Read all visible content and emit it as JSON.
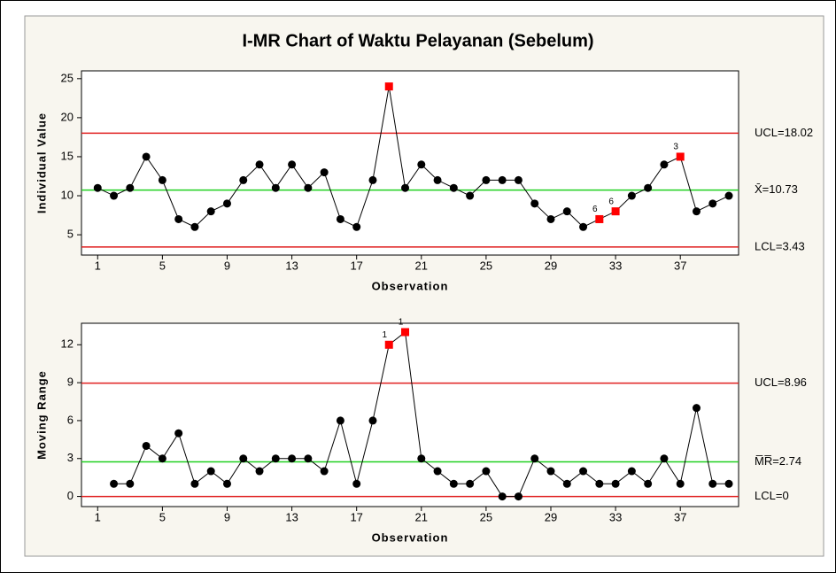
{
  "title": "I-MR Chart of Waktu Pelayanan (Sebelum)",
  "chart_data": [
    {
      "type": "line",
      "y_label": "Individual Value",
      "x_label": "Observation",
      "x": [
        1,
        2,
        3,
        4,
        5,
        6,
        7,
        8,
        9,
        10,
        11,
        12,
        13,
        14,
        15,
        16,
        17,
        18,
        19,
        20,
        21,
        22,
        23,
        24,
        25,
        26,
        27,
        28,
        29,
        30,
        31,
        32,
        33,
        34,
        35,
        36,
        37,
        38,
        39,
        40
      ],
      "values": [
        11,
        10,
        11,
        15,
        12,
        7,
        6,
        8,
        9,
        12,
        14,
        11,
        14,
        11,
        13,
        7,
        6,
        12,
        24,
        11,
        14,
        12,
        11,
        10,
        12,
        12,
        12,
        9,
        7,
        8,
        6,
        7,
        8,
        10,
        11,
        14,
        15,
        8,
        9,
        10
      ],
      "color": "#000000",
      "alert_color": "#ff0000",
      "alerts": [
        19,
        32,
        33,
        37
      ],
      "annotations": [
        {
          "x": 32,
          "label": "6"
        },
        {
          "x": 33,
          "label": "6"
        },
        {
          "x": 37,
          "label": "3"
        }
      ],
      "lines": [
        {
          "value": 18.02,
          "label": "UCL=18.02",
          "color": "#e02020"
        },
        {
          "value": 10.73,
          "label": "X̄=10.73",
          "color": "#20d020"
        },
        {
          "value": 3.43,
          "label": "LCL=3.43",
          "color": "#e02020"
        }
      ],
      "xlim": [
        0,
        40.6
      ],
      "xticks": [
        1,
        5,
        9,
        13,
        17,
        21,
        25,
        29,
        33,
        37
      ],
      "ylim": [
        2.4,
        26
      ],
      "yticks": [
        5,
        10,
        15,
        20,
        25
      ]
    },
    {
      "type": "line",
      "y_label": "Moving Range",
      "x_label": "Observation",
      "x": [
        1,
        2,
        3,
        4,
        5,
        6,
        7,
        8,
        9,
        10,
        11,
        12,
        13,
        14,
        15,
        16,
        17,
        18,
        19,
        20,
        21,
        22,
        23,
        24,
        25,
        26,
        27,
        28,
        29,
        30,
        31,
        32,
        33,
        34,
        35,
        36,
        37,
        38,
        39,
        40
      ],
      "values": [
        null,
        1,
        1,
        4,
        3,
        5,
        1,
        2,
        1,
        3,
        2,
        3,
        3,
        3,
        2,
        6,
        1,
        6,
        12,
        13,
        3,
        2,
        1,
        1,
        2,
        0,
        0,
        3,
        2,
        1,
        2,
        1,
        1,
        2,
        1,
        3,
        1,
        7,
        1,
        1
      ],
      "color": "#000000",
      "alert_color": "#ff0000",
      "alerts": [
        19,
        20
      ],
      "annotations": [
        {
          "x": 19,
          "label": "1"
        },
        {
          "x": 20,
          "label": "1"
        }
      ],
      "lines": [
        {
          "value": 8.96,
          "label": "UCL=8.96",
          "color": "#e02020"
        },
        {
          "value": 2.74,
          "label": "M̅R̅=2.74",
          "color": "#20d020"
        },
        {
          "value": 0,
          "label": "LCL=0",
          "color": "#e02020"
        }
      ],
      "xlim": [
        0,
        40.6
      ],
      "xticks": [
        1,
        5,
        9,
        13,
        17,
        21,
        25,
        29,
        33,
        37
      ],
      "ylim": [
        -0.8,
        13.7
      ],
      "yticks": [
        0,
        3,
        6,
        9,
        12
      ]
    }
  ]
}
